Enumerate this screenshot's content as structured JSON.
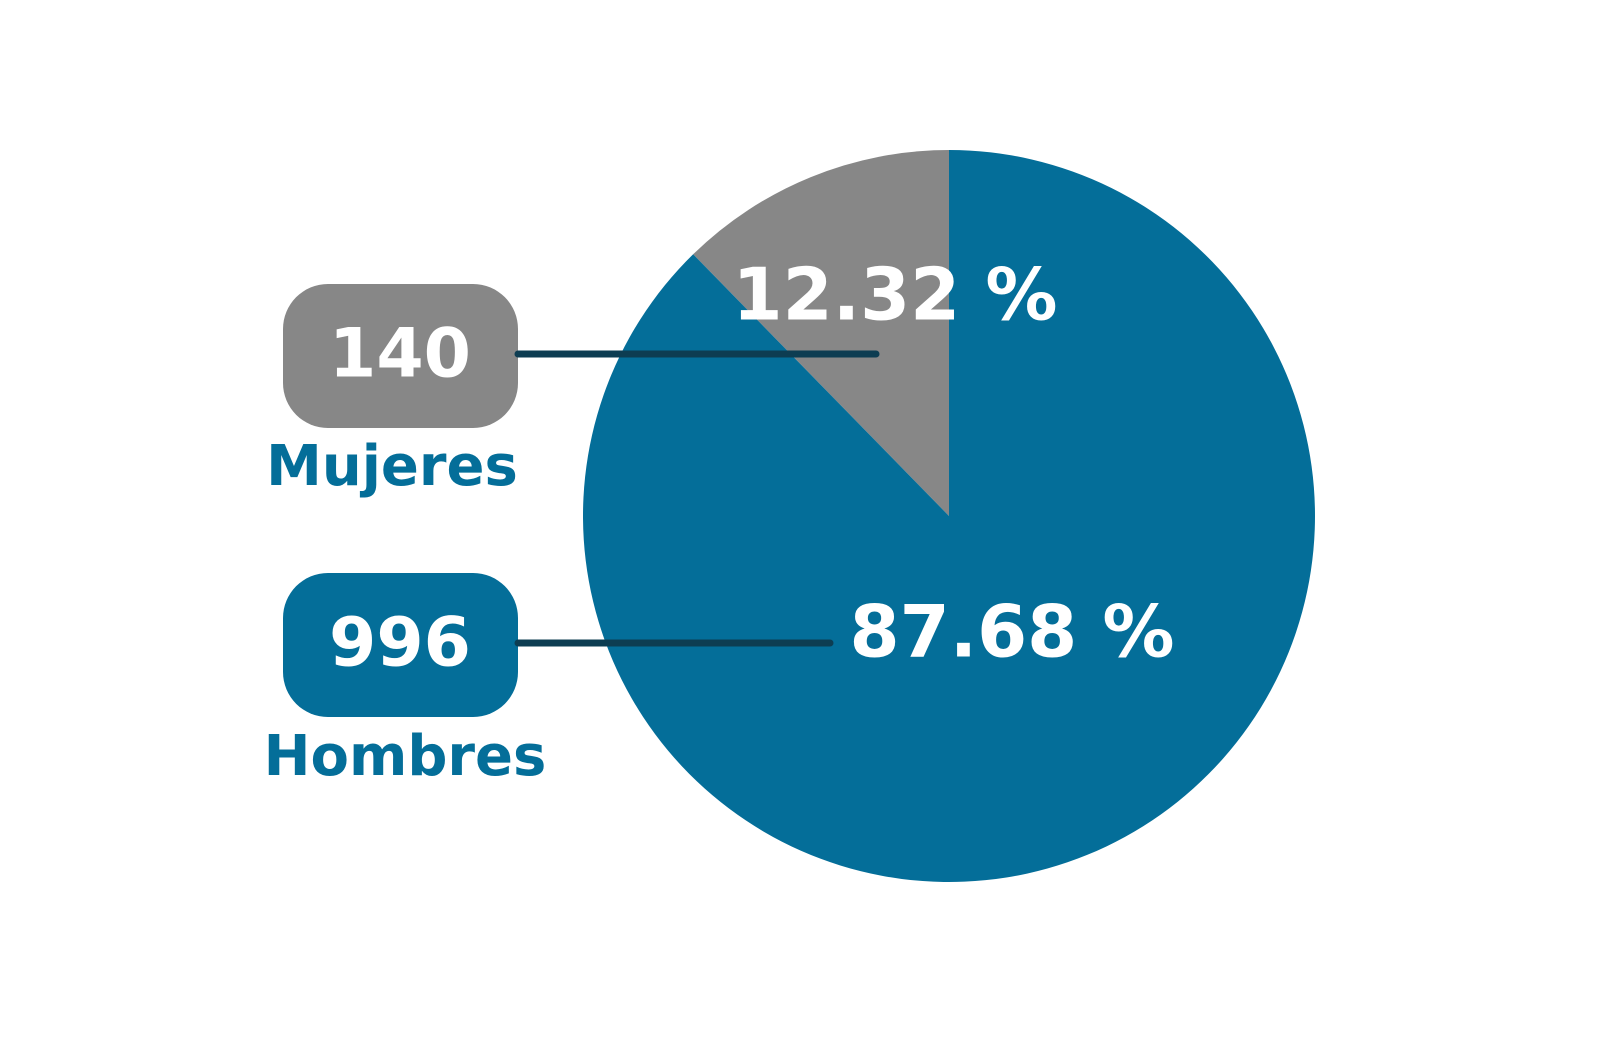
{
  "chart_data": {
    "type": "pie",
    "categories": [
      "Mujeres",
      "Hombres"
    ],
    "values": [
      12.32,
      87.68
    ],
    "value_labels": [
      "12.32 %",
      "87.68 %"
    ],
    "counts": [
      140,
      996
    ],
    "colors": [
      "#878787",
      "#046e99"
    ]
  }
}
